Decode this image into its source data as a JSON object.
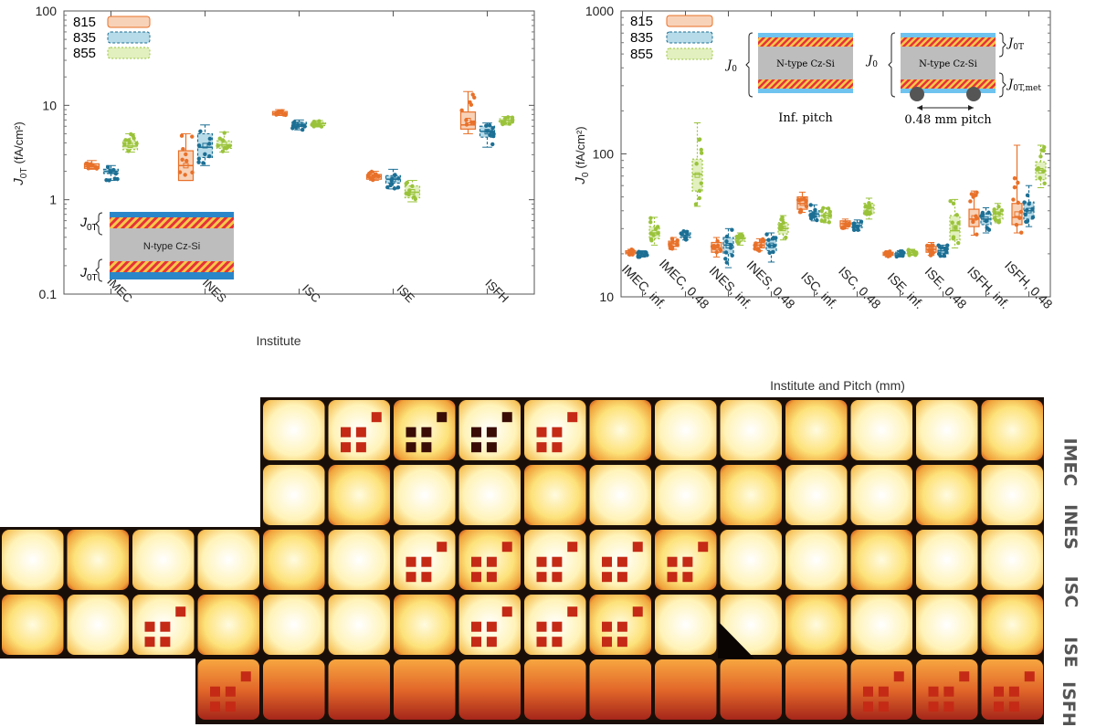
{
  "left_chart": {
    "ylabel_main": "J",
    "ylabel_sub": "0T",
    "ylabel_unit": "(fA/cm²)",
    "xlabel": "Institute",
    "inset": {
      "top_label": "J",
      "top_sub": "0T",
      "bottom_label": "J",
      "bottom_sub": "0T",
      "text": "N-type Cz-Si"
    }
  },
  "right_chart": {
    "ylabel_main": "J",
    "ylabel_sub": "0",
    "ylabel_unit": "(fA/cm²)",
    "xlabel": "Institute and Pitch (mm)",
    "inset": {
      "left_text": "N-type Cz-Si",
      "left_j_label": "J",
      "left_j_sub": "0",
      "left_caption": "Inf. pitch",
      "right_text": "N-type Cz-Si",
      "right_j_label": "J",
      "right_j_sub": "0",
      "right_top_label": "J",
      "right_top_sub": "0T",
      "right_bottom_label": "J",
      "right_bottom_sub": "0T,met",
      "right_caption": "0.48 mm pitch"
    }
  },
  "pl_image": {
    "rows": [
      "IMEC",
      "INES",
      "ISC",
      "ISE",
      "ISFH"
    ]
  },
  "colors": {
    "s815": "#e8712a",
    "s815_fill": "#f8d2b8",
    "s835": "#1c6f94",
    "s835_fill": "#b7dbe8",
    "s855": "#9ac33b",
    "s855_fill": "#e2f0bf"
  },
  "chart_data": [
    {
      "type": "box",
      "title": "",
      "xlabel": "Institute",
      "ylabel": "J0T (fA/cm²)",
      "yscale": "log",
      "ylim": [
        0.1,
        100
      ],
      "yticks": [
        "0.1",
        "1",
        "10",
        "100"
      ],
      "categories": [
        "IMEC",
        "INES",
        "ISC",
        "ISE",
        "ISFH"
      ],
      "legend": [
        "815",
        "835",
        "855"
      ],
      "series": [
        {
          "name": "815",
          "boxes": [
            {
              "min": 2.1,
              "q1": 2.15,
              "median": 2.25,
              "q3": 2.4,
              "max": 2.6
            },
            {
              "min": 1.6,
              "q1": 1.6,
              "median": 2.3,
              "q3": 3.3,
              "max": 5.0
            },
            {
              "min": 7.8,
              "q1": 7.9,
              "median": 8.2,
              "q3": 8.6,
              "max": 9.0
            },
            {
              "min": 1.6,
              "q1": 1.65,
              "median": 1.75,
              "q3": 1.85,
              "max": 2.0
            },
            {
              "min": 5.0,
              "q1": 5.6,
              "median": 6.2,
              "q3": 8.5,
              "max": 14.0
            }
          ]
        },
        {
          "name": "835",
          "boxes": [
            {
              "min": 1.6,
              "q1": 1.9,
              "median": 2.0,
              "q3": 2.1,
              "max": 2.3
            },
            {
              "min": 2.3,
              "q1": 2.8,
              "median": 3.6,
              "q3": 5.0,
              "max": 6.2
            },
            {
              "min": 5.5,
              "q1": 6.0,
              "median": 6.3,
              "q3": 6.6,
              "max": 7.0
            },
            {
              "min": 1.3,
              "q1": 1.5,
              "median": 1.65,
              "q3": 1.8,
              "max": 2.1
            },
            {
              "min": 3.6,
              "q1": 4.6,
              "median": 5.3,
              "q3": 6.0,
              "max": 6.5
            }
          ]
        },
        {
          "name": "855",
          "boxes": [
            {
              "min": 3.2,
              "q1": 3.4,
              "median": 3.7,
              "q3": 4.2,
              "max": 5.0
            },
            {
              "min": 3.2,
              "q1": 3.5,
              "median": 3.8,
              "q3": 4.2,
              "max": 5.2
            },
            {
              "min": 5.9,
              "q1": 6.1,
              "median": 6.4,
              "q3": 6.6,
              "max": 6.9
            },
            {
              "min": 0.95,
              "q1": 1.05,
              "median": 1.2,
              "q3": 1.4,
              "max": 1.6
            },
            {
              "min": 6.2,
              "q1": 6.6,
              "median": 6.9,
              "q3": 7.2,
              "max": 7.6
            }
          ]
        }
      ]
    },
    {
      "type": "box",
      "title": "",
      "xlabel": "Institute and Pitch (mm)",
      "ylabel": "J0 (fA/cm²)",
      "yscale": "log",
      "ylim": [
        10,
        1000
      ],
      "yticks": [
        "10",
        "100",
        "1000"
      ],
      "categories": [
        "IMEC, inf.",
        "IMEC, 0.48",
        "INES, inf.",
        "INES, 0.48",
        "ISC, inf.",
        "ISC, 0.48",
        "ISE, inf.",
        "ISE, 0.48",
        "ISFH, inf.",
        "ISFH, 0.48"
      ],
      "legend": [
        "815",
        "835",
        "855"
      ],
      "series": [
        {
          "name": "815",
          "boxes": [
            {
              "min": 19.5,
              "q1": 20,
              "median": 20.5,
              "q3": 21,
              "max": 21.5
            },
            {
              "min": 21.5,
              "q1": 22.5,
              "median": 23.5,
              "q3": 24.5,
              "max": 26
            },
            {
              "min": 19,
              "q1": 20.5,
              "median": 22,
              "q3": 24,
              "max": 26
            },
            {
              "min": 21,
              "q1": 22,
              "median": 23,
              "q3": 24,
              "max": 25.5
            },
            {
              "min": 39,
              "q1": 41,
              "median": 45,
              "q3": 50,
              "max": 54
            },
            {
              "min": 30,
              "q1": 31,
              "median": 32.5,
              "q3": 34,
              "max": 35
            },
            {
              "min": 19,
              "q1": 19.5,
              "median": 20,
              "q3": 20.5,
              "max": 21
            },
            {
              "min": 19.5,
              "q1": 20.5,
              "median": 21.5,
              "q3": 22.5,
              "max": 24
            },
            {
              "min": 27,
              "q1": 31,
              "median": 35,
              "q3": 41,
              "max": 55
            },
            {
              "min": 28,
              "q1": 32,
              "median": 36,
              "q3": 45,
              "max": 115
            }
          ]
        },
        {
          "name": "835",
          "boxes": [
            {
              "min": 19,
              "q1": 19.5,
              "median": 20,
              "q3": 20.5,
              "max": 21
            },
            {
              "min": 25,
              "q1": 26,
              "median": 27,
              "q3": 28,
              "max": 29
            },
            {
              "min": 16,
              "q1": 20,
              "median": 23,
              "q3": 26,
              "max": 30
            },
            {
              "min": 17.5,
              "q1": 21,
              "median": 23,
              "q3": 25,
              "max": 28
            },
            {
              "min": 34,
              "q1": 36,
              "median": 38,
              "q3": 40,
              "max": 44
            },
            {
              "min": 29,
              "q1": 30.5,
              "median": 31.5,
              "q3": 33,
              "max": 34.5
            },
            {
              "min": 19,
              "q1": 19.5,
              "median": 20,
              "q3": 20.5,
              "max": 21
            },
            {
              "min": 19,
              "q1": 20,
              "median": 21,
              "q3": 22,
              "max": 23
            },
            {
              "min": 28,
              "q1": 32,
              "median": 35,
              "q3": 38,
              "max": 42
            },
            {
              "min": 31,
              "q1": 35,
              "median": 40,
              "q3": 46,
              "max": 60
            }
          ]
        },
        {
          "name": "855",
          "boxes": [
            {
              "min": 23,
              "q1": 25.5,
              "median": 28,
              "q3": 31,
              "max": 36
            },
            {
              "min": 43,
              "q1": 55,
              "median": 72,
              "q3": 92,
              "max": 165
            },
            {
              "min": 23,
              "q1": 24.5,
              "median": 25.5,
              "q3": 26.5,
              "max": 28
            },
            {
              "min": 25,
              "q1": 27.5,
              "median": 30,
              "q3": 33,
              "max": 37
            },
            {
              "min": 33,
              "q1": 35,
              "median": 37,
              "q3": 39,
              "max": 42
            },
            {
              "min": 35,
              "q1": 38,
              "median": 42,
              "q3": 45,
              "max": 49
            },
            {
              "min": 19.5,
              "q1": 20,
              "median": 20.5,
              "q3": 21,
              "max": 21.5
            },
            {
              "min": 22,
              "q1": 25,
              "median": 29,
              "q3": 37,
              "max": 48
            },
            {
              "min": 33,
              "q1": 35,
              "median": 38,
              "q3": 41,
              "max": 45
            },
            {
              "min": 58,
              "q1": 66,
              "median": 77,
              "q3": 88,
              "max": 115
            }
          ]
        }
      ]
    }
  ]
}
